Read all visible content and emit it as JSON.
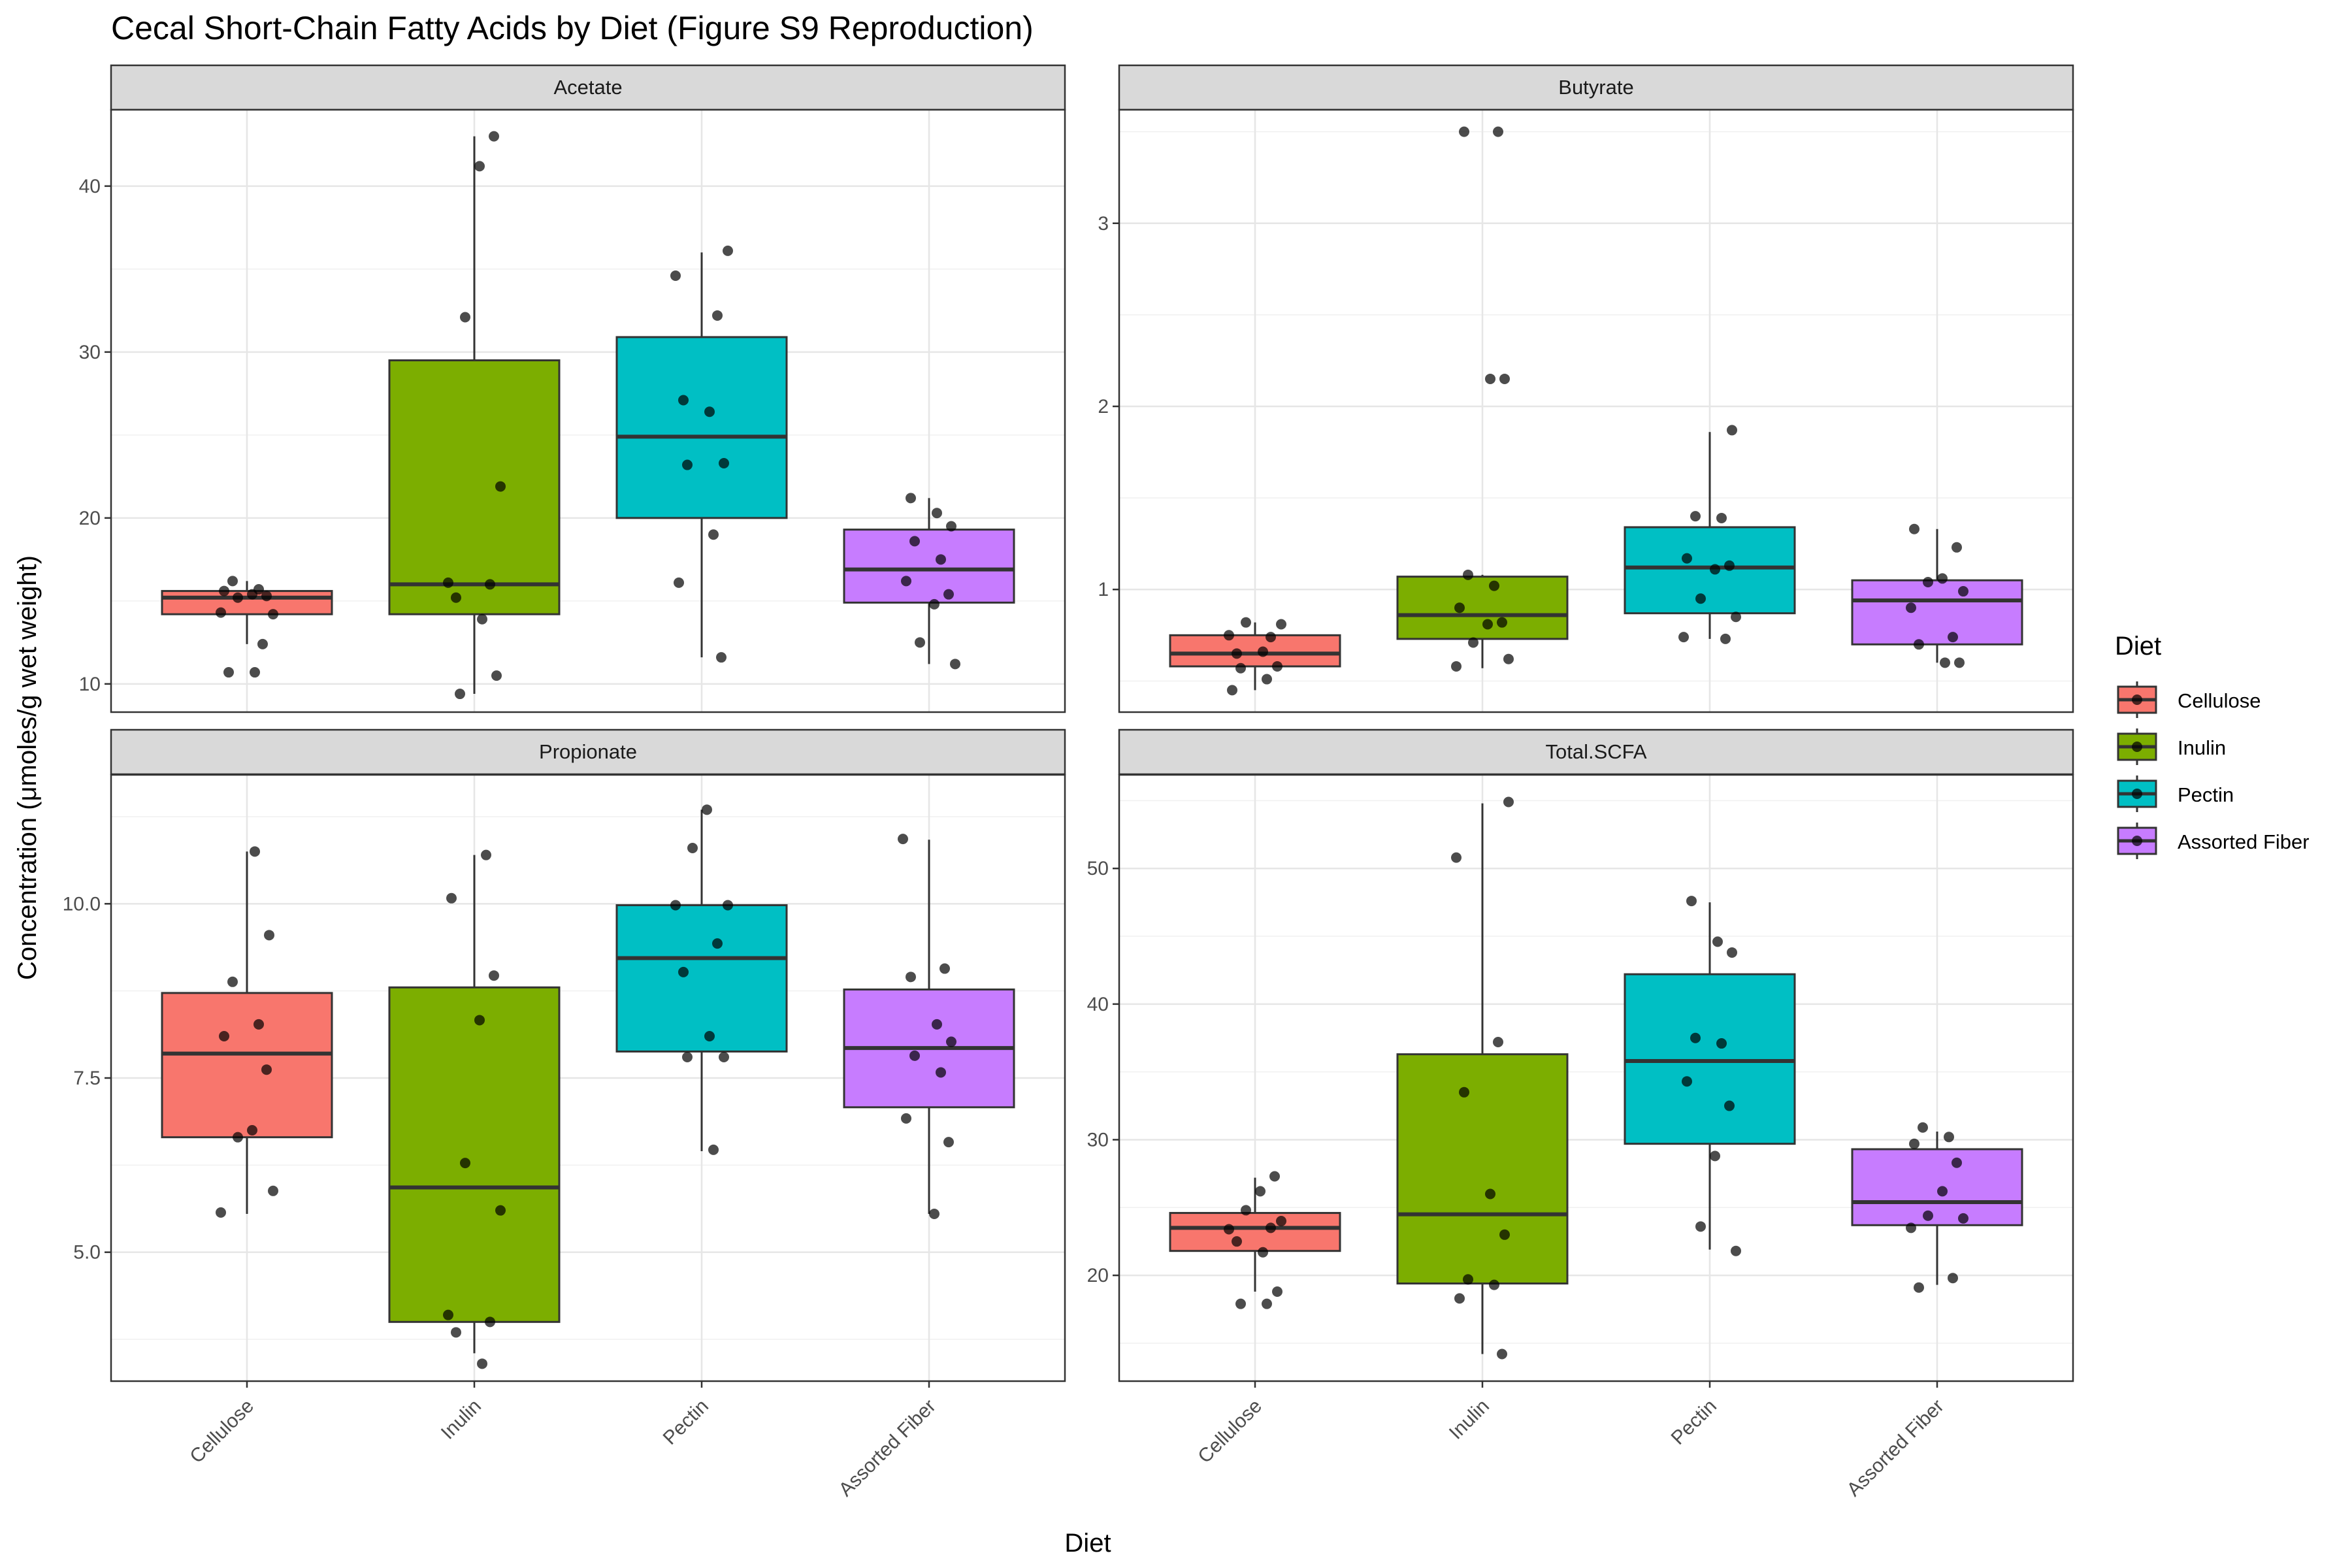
{
  "chart_data": {
    "type": "box",
    "title": "Cecal Short-Chain Fatty Acids by Diet (Figure S9 Reproduction)",
    "xlabel": "Diet",
    "ylabel": "Concentration (μmoles/g wet weight)",
    "categories": [
      "Cellulose",
      "Inulin",
      "Pectin",
      "Assorted Fiber"
    ],
    "colors": {
      "Cellulose": "#F8766D",
      "Inulin": "#7CAE00",
      "Pectin": "#00BFC4",
      "Assorted Fiber": "#C77CFF"
    },
    "legend": {
      "title": "Diet",
      "position": "right",
      "items": [
        "Cellulose",
        "Inulin",
        "Pectin",
        "Assorted Fiber"
      ]
    },
    "grid": true,
    "panels": [
      {
        "name": "Acetate",
        "ylim": [
          8.3,
          44.6
        ],
        "yticks": [
          10,
          20,
          30,
          40
        ],
        "tick_labels": [
          "10",
          "20",
          "30",
          "40"
        ],
        "boxes": [
          {
            "diet": "Cellulose",
            "whisker_low": 12.4,
            "q1": 14.2,
            "median": 15.2,
            "q3": 15.6,
            "whisker_high": 16.2,
            "points": [
              16.2,
              15.7,
              15.6,
              15.3,
              15.4,
              15.2,
              14.2,
              14.3,
              12.4,
              10.7,
              10.7
            ]
          },
          {
            "diet": "Inulin",
            "whisker_low": 9.4,
            "q1": 14.2,
            "median": 16.0,
            "q3": 29.5,
            "whisker_high": 43.0,
            "points": [
              43.0,
              41.2,
              32.1,
              21.9,
              16.1,
              16.0,
              15.2,
              13.9,
              10.5,
              9.4
            ]
          },
          {
            "diet": "Pectin",
            "whisker_low": 11.6,
            "q1": 20.0,
            "median": 24.9,
            "q3": 30.9,
            "whisker_high": 36.0,
            "points": [
              36.1,
              34.6,
              32.2,
              27.1,
              26.4,
              23.3,
              23.2,
              19.0,
              16.1,
              11.6
            ]
          },
          {
            "diet": "Assorted Fiber",
            "whisker_low": 11.2,
            "q1": 14.9,
            "median": 16.9,
            "q3": 19.3,
            "whisker_high": 21.2,
            "points": [
              21.2,
              20.3,
              19.5,
              18.6,
              17.5,
              16.2,
              15.4,
              14.8,
              12.5,
              11.2
            ]
          }
        ]
      },
      {
        "name": "Butyrate",
        "ylim": [
          0.33,
          3.62
        ],
        "yticks": [
          1,
          2,
          3
        ],
        "tick_labels": [
          "1",
          "2",
          "3"
        ],
        "boxes": [
          {
            "diet": "Cellulose",
            "whisker_low": 0.45,
            "q1": 0.58,
            "median": 0.65,
            "q3": 0.75,
            "whisker_high": 0.82,
            "points": [
              0.82,
              0.81,
              0.75,
              0.74,
              0.65,
              0.66,
              0.58,
              0.57,
              0.51,
              0.45
            ]
          },
          {
            "diet": "Inulin",
            "whisker_low": 0.57,
            "q1": 0.73,
            "median": 0.86,
            "q3": 1.07,
            "whisker_high": 1.08,
            "points": [
              3.5,
              3.5,
              2.15,
              2.15,
              1.08,
              1.02,
              0.9,
              0.82,
              0.81,
              0.71,
              0.62,
              0.58
            ]
          },
          {
            "diet": "Pectin",
            "whisker_low": 0.73,
            "q1": 0.87,
            "median": 1.12,
            "q3": 1.34,
            "whisker_high": 1.86,
            "points": [
              1.87,
              1.4,
              1.39,
              1.17,
              1.13,
              1.11,
              0.95,
              0.85,
              0.74,
              0.73
            ]
          },
          {
            "diet": "Assorted Fiber",
            "whisker_low": 0.6,
            "q1": 0.7,
            "median": 0.94,
            "q3": 1.05,
            "whisker_high": 1.33,
            "points": [
              1.33,
              1.23,
              1.06,
              1.04,
              0.99,
              0.9,
              0.74,
              0.7,
              0.6,
              0.6
            ]
          }
        ]
      },
      {
        "name": "Propionate",
        "ylim": [
          3.15,
          11.85
        ],
        "yticks": [
          5.0,
          7.5,
          10.0
        ],
        "tick_labels": [
          "5.0",
          "7.5",
          "10.0"
        ],
        "boxes": [
          {
            "diet": "Cellulose",
            "whisker_low": 5.55,
            "q1": 6.65,
            "median": 7.85,
            "q3": 8.72,
            "whisker_high": 10.75,
            "points": [
              10.75,
              9.55,
              8.88,
              8.27,
              8.1,
              7.62,
              6.75,
              6.65,
              5.88,
              5.57
            ]
          },
          {
            "diet": "Inulin",
            "whisker_low": 3.55,
            "q1": 4.0,
            "median": 5.93,
            "q3": 8.8,
            "whisker_high": 10.7,
            "points": [
              10.7,
              10.08,
              8.97,
              8.33,
              6.28,
              5.6,
              4.1,
              4.0,
              3.85,
              3.4
            ]
          },
          {
            "diet": "Pectin",
            "whisker_low": 6.45,
            "q1": 7.88,
            "median": 9.22,
            "q3": 9.98,
            "whisker_high": 11.35,
            "points": [
              11.35,
              10.8,
              9.98,
              9.98,
              9.43,
              9.02,
              8.1,
              7.8,
              7.8,
              6.47
            ]
          },
          {
            "diet": "Assorted Fiber",
            "whisker_low": 5.55,
            "q1": 7.08,
            "median": 7.93,
            "q3": 8.77,
            "whisker_high": 10.92,
            "points": [
              10.93,
              9.07,
              8.95,
              8.27,
              8.02,
              7.82,
              7.58,
              6.92,
              6.58,
              5.55
            ]
          }
        ]
      },
      {
        "name": "Total.SCFA",
        "ylim": [
          12.2,
          56.9
        ],
        "yticks": [
          20,
          30,
          40,
          50
        ],
        "tick_labels": [
          "20",
          "30",
          "40",
          "50"
        ],
        "boxes": [
          {
            "diet": "Cellulose",
            "whisker_low": 18.8,
            "q1": 21.8,
            "median": 23.5,
            "q3": 24.6,
            "whisker_high": 27.2,
            "points": [
              27.3,
              26.2,
              24.8,
              24.0,
              23.4,
              23.5,
              22.5,
              21.7,
              18.8,
              17.9,
              17.9
            ]
          },
          {
            "diet": "Inulin",
            "whisker_low": 14.2,
            "q1": 19.4,
            "median": 24.5,
            "q3": 36.3,
            "whisker_high": 54.8,
            "points": [
              54.9,
              50.8,
              37.2,
              33.5,
              26.0,
              23.0,
              19.7,
              19.3,
              18.3,
              14.2
            ]
          },
          {
            "diet": "Pectin",
            "whisker_low": 21.9,
            "q1": 29.7,
            "median": 35.8,
            "q3": 42.2,
            "whisker_high": 47.5,
            "points": [
              47.6,
              44.6,
              43.8,
              37.5,
              37.1,
              34.3,
              32.5,
              28.8,
              23.6,
              21.8
            ]
          },
          {
            "diet": "Assorted Fiber",
            "whisker_low": 19.3,
            "q1": 23.7,
            "median": 25.4,
            "q3": 29.3,
            "whisker_high": 30.6,
            "points": [
              30.9,
              30.2,
              29.7,
              28.3,
              26.2,
              24.4,
              24.2,
              23.5,
              19.8,
              19.1
            ]
          }
        ]
      }
    ]
  }
}
